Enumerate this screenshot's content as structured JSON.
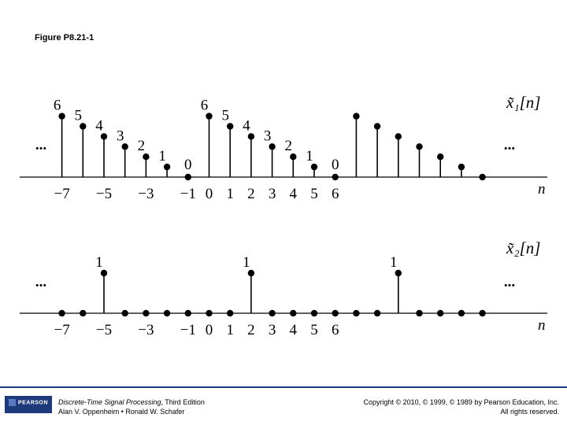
{
  "figure_label": "Figure P8.21-1",
  "footer": {
    "logo": "PEARSON",
    "book_title": "Discrete-Time Signal Processing",
    "book_edition": ", Third Edition",
    "authors": "Alan V. Oppenheim • Ronald W. Schafer",
    "copyright": "Copyright © 2010, © 1999, © 1989 by Pearson Education, Inc.",
    "rights": "All rights reserved."
  },
  "chart_data": [
    {
      "type": "stem",
      "title": "x̃₁[n]",
      "xlabel": "n",
      "tick_labels": [
        "−7",
        "−5",
        "−3",
        "−1",
        "0",
        "1",
        "2",
        "3",
        "4",
        "5",
        "6"
      ],
      "x": [
        -7,
        -6,
        -5,
        -4,
        -3,
        -2,
        -1,
        0,
        1,
        2,
        3,
        4,
        5,
        6,
        7,
        8,
        9,
        10,
        11,
        12,
        13
      ],
      "values": [
        6,
        5,
        4,
        3,
        2,
        1,
        0,
        6,
        5,
        4,
        3,
        2,
        1,
        0,
        6,
        5,
        4,
        3,
        2,
        1,
        0
      ],
      "labeled_x": [
        -7,
        -6,
        -5,
        -4,
        -3,
        -2,
        -1,
        0,
        1,
        2,
        3,
        4,
        5,
        6
      ],
      "continuation": "...",
      "period": 7
    },
    {
      "type": "stem",
      "title": "x̃₂[n]",
      "xlabel": "n",
      "tick_labels": [
        "−7",
        "−5",
        "−3",
        "−1",
        "0",
        "1",
        "2",
        "3",
        "4",
        "5",
        "6"
      ],
      "x": [
        -7,
        -6,
        -5,
        -4,
        -3,
        -2,
        -1,
        0,
        1,
        2,
        3,
        4,
        5,
        6,
        7,
        8,
        9,
        10,
        11,
        12,
        13
      ],
      "values": [
        0,
        0,
        1,
        0,
        0,
        0,
        0,
        0,
        0,
        1,
        0,
        0,
        0,
        0,
        0,
        0,
        1,
        0,
        0,
        0,
        0
      ],
      "labeled_x": [
        -5,
        2,
        9
      ],
      "continuation": "...",
      "period": 7
    }
  ]
}
